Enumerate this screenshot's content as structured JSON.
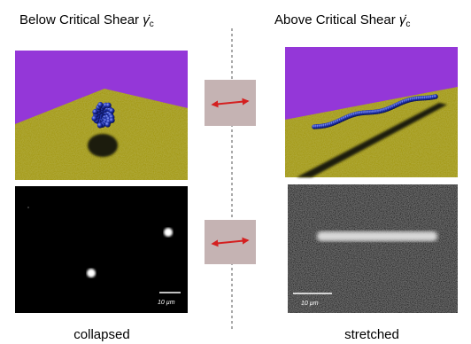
{
  "left": {
    "title": "Below Critical Shear",
    "symbol": "γ̇",
    "subscript": "c",
    "scale_bar": "10 µm",
    "caption": "collapsed"
  },
  "right": {
    "title": "Above Critical Shear",
    "symbol": "γ̇",
    "subscript": "c",
    "scale_bar": "10 µm",
    "caption": "stretched"
  }
}
